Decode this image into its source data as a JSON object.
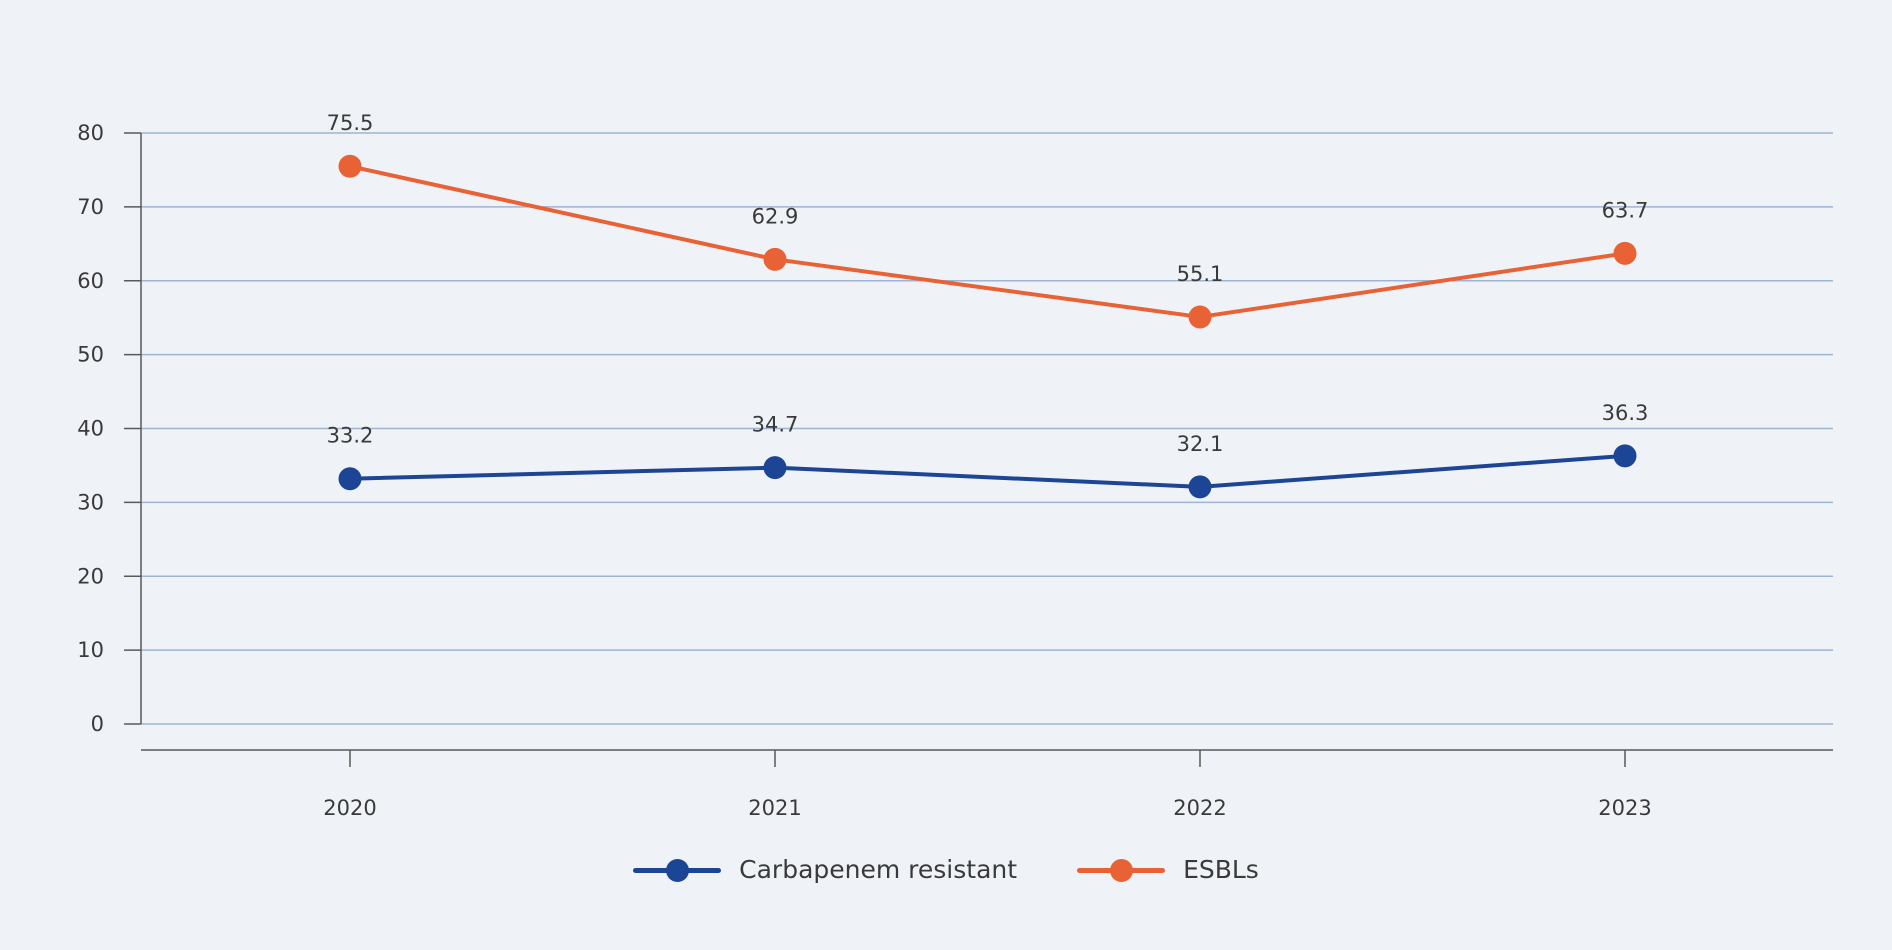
{
  "chart_data": {
    "type": "line",
    "title": "",
    "xlabel": "",
    "ylabel": "",
    "categories": [
      "2020",
      "2021",
      "2022",
      "2023"
    ],
    "ylim": [
      0,
      80
    ],
    "yticks": [
      "0",
      "10",
      "20",
      "30",
      "40",
      "50",
      "60",
      "70",
      "80"
    ],
    "grid": true,
    "legend_position": "bottom-center",
    "series": [
      {
        "name": "Carbapenem resistant",
        "color": "#1d4596",
        "values": [
          33.2,
          34.7,
          32.1,
          36.3
        ],
        "labels": [
          "33.2",
          "34.7",
          "32.1",
          "36.3"
        ]
      },
      {
        "name": "ESBLs",
        "color": "#e86236",
        "values": [
          75.5,
          62.9,
          55.1,
          63.7
        ],
        "labels": [
          "75.5",
          "62.9",
          "55.1",
          "63.7"
        ]
      }
    ]
  },
  "colors": {
    "background": "#eff3f8",
    "grid": "#9fb3d3",
    "axis": "#595959"
  }
}
